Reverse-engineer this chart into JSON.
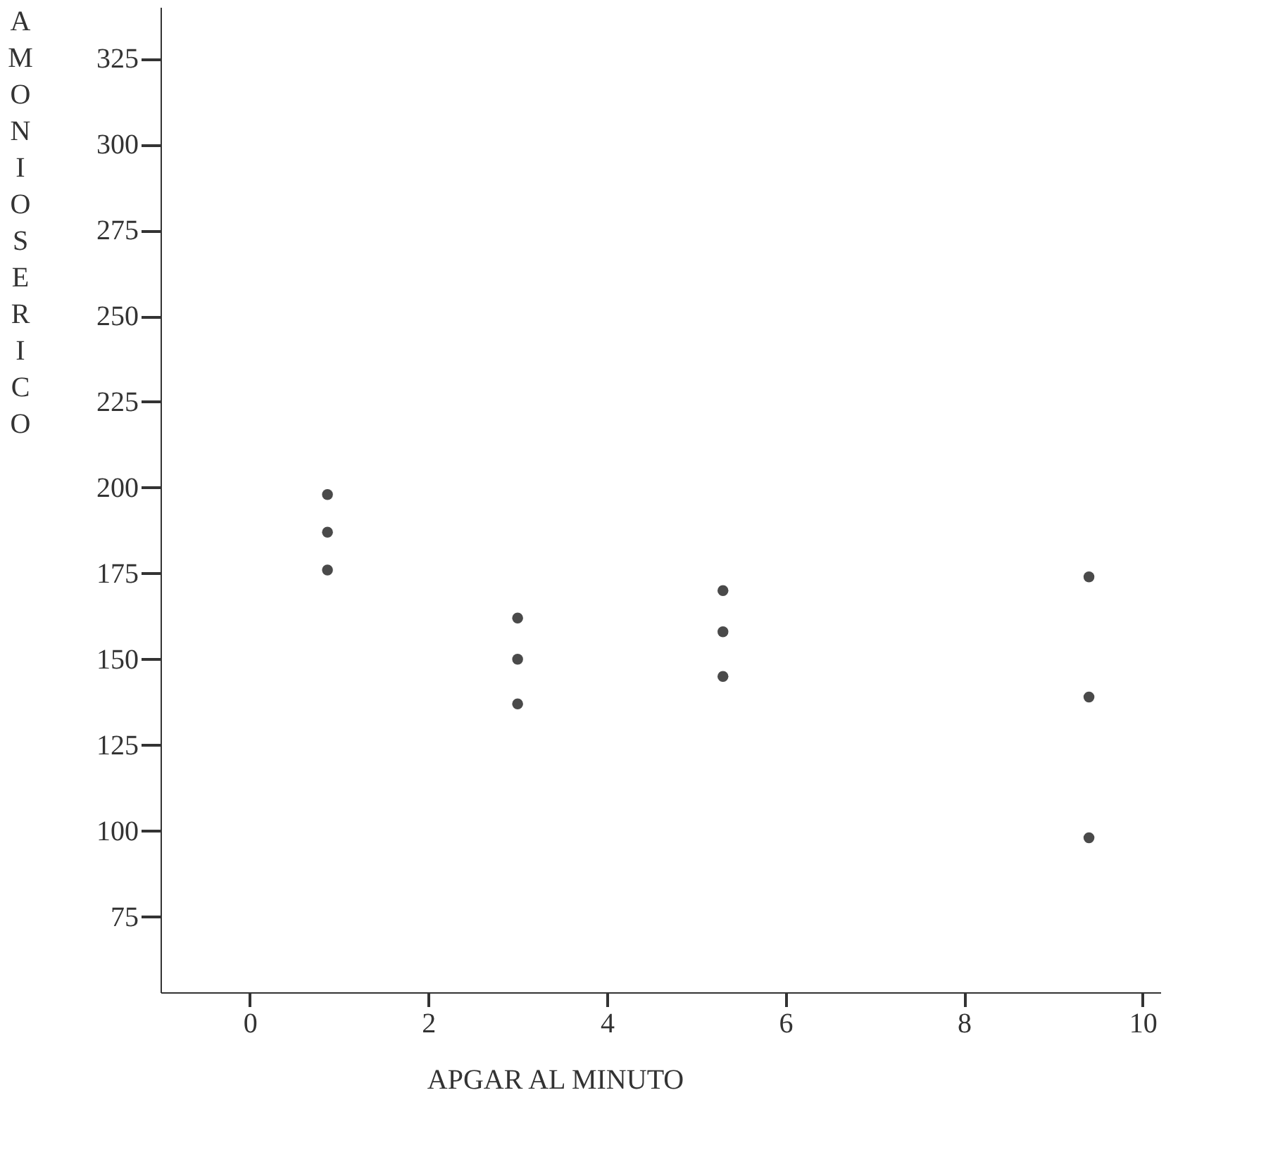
{
  "chart_data": {
    "type": "scatter",
    "xlabel": "APGAR AL MINUTO",
    "ylabel": "AMONIO SERICO",
    "x": [
      0.87,
      0.87,
      0.87,
      3.0,
      3.0,
      3.0,
      5.3,
      5.3,
      5.3,
      9.4,
      9.4,
      9.4
    ],
    "values": [
      198,
      187,
      176,
      162,
      150,
      137,
      170,
      158,
      145,
      174,
      139,
      98
    ],
    "color": "#4a4a4a",
    "marker": "circle",
    "xlim": [
      -1,
      10.2
    ],
    "xticks": [
      0,
      2,
      4,
      6,
      8,
      10
    ],
    "ylim": [
      53,
      340
    ],
    "yticks": [
      75,
      100,
      125,
      150,
      175,
      200,
      225,
      250,
      275,
      300,
      325
    ],
    "grid": false
  }
}
